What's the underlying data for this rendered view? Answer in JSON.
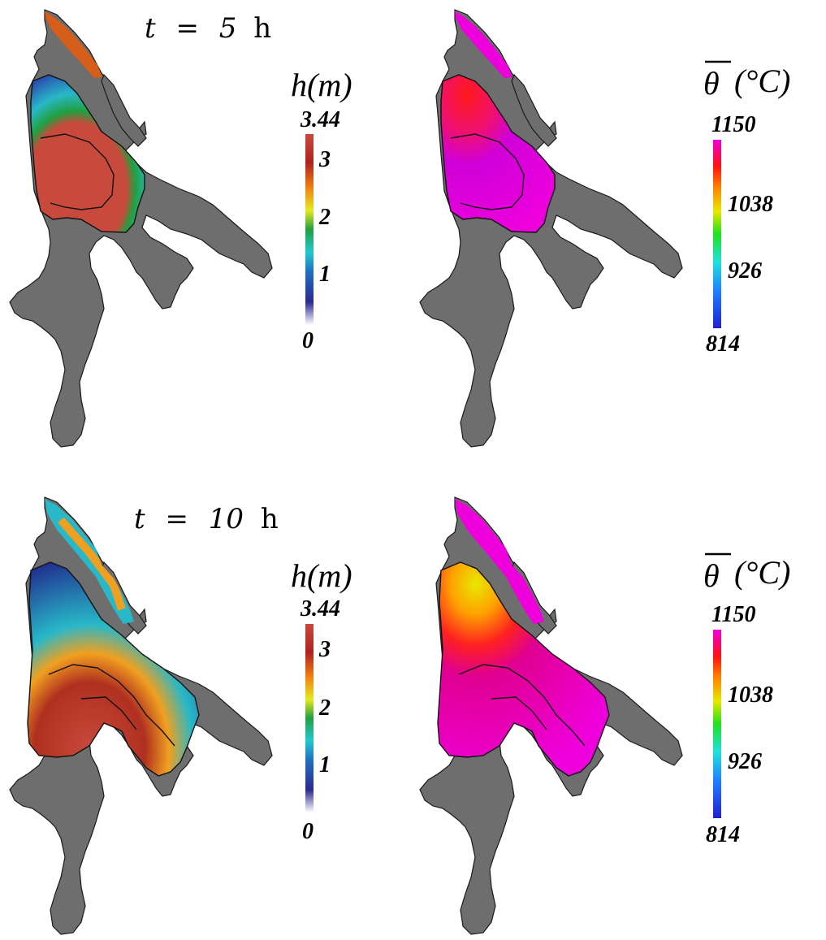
{
  "panels": [
    {
      "time_label": {
        "var": "t",
        "op": "=",
        "value": "5",
        "unit": "h"
      },
      "depth_bar": {
        "title": "h(m)",
        "top": "3.44",
        "ticks": [
          "3",
          "2",
          "1"
        ],
        "bottom": "0"
      },
      "temp_bar": {
        "title_symbol": "θ",
        "title_unit": "(°C)",
        "ticks": [
          "1150",
          "1038",
          "926",
          "814"
        ]
      }
    },
    {
      "time_label": {
        "var": "t",
        "op": "=",
        "value": "10",
        "unit": "h"
      },
      "depth_bar": {
        "title": "h(m)",
        "top": "3.44",
        "ticks": [
          "3",
          "2",
          "1"
        ],
        "bottom": "0"
      },
      "temp_bar": {
        "title_symbol": "θ",
        "title_unit": "(°C)",
        "ticks": [
          "1150",
          "1038",
          "926",
          "814"
        ]
      }
    }
  ],
  "colors": {
    "terrain": "#6e6e6e",
    "depth_high": "#c84a3c",
    "depth_mid": "#f0a020",
    "depth_low": "#28b8c8",
    "temp_hot": "#ee00dd",
    "temp_warm": "#ff2020",
    "temp_mid": "#e8e800"
  }
}
